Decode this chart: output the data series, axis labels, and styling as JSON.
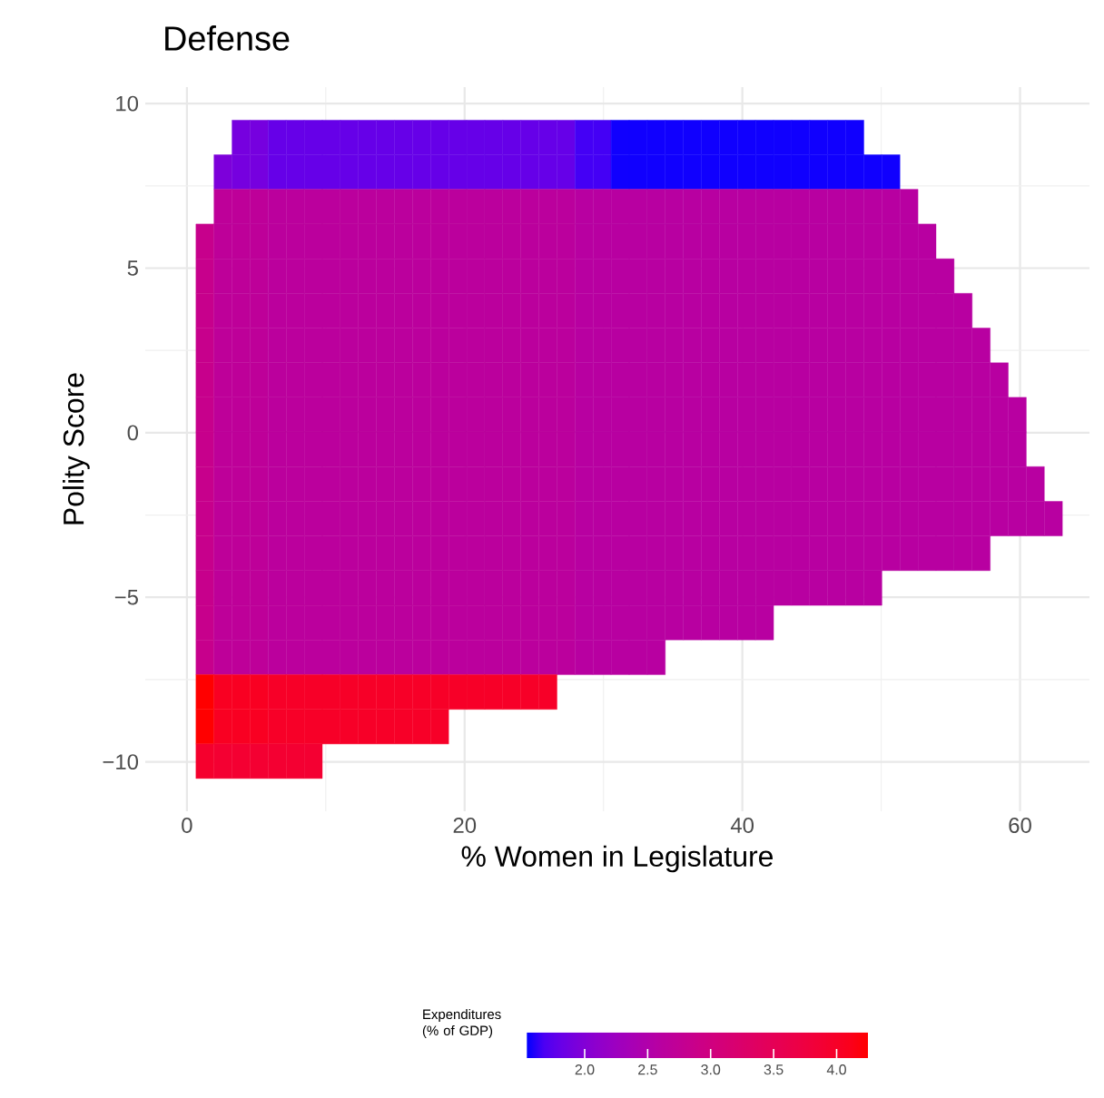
{
  "chart_data": {
    "type": "heatmap",
    "title": "Defense",
    "xlabel": "% Women in Legislature",
    "ylabel": "Polity Score",
    "clabel": "Expenditures (% of GDP)",
    "x": [
      1.3,
      2.6,
      3.9,
      5.2,
      6.5,
      7.8,
      9.1,
      10.4,
      11.7,
      13,
      14.3,
      15.6,
      16.9,
      18.2,
      19.5,
      20.8,
      22.1,
      23.4,
      24.7,
      26,
      27.3,
      28.6,
      29.9,
      31.2,
      32.5,
      33.8,
      35.1,
      36.4,
      37.7,
      39,
      40.3,
      41.6,
      42.9,
      44.2,
      45.5,
      46.8,
      48.1,
      49.4,
      50.7,
      52,
      53.3,
      54.6,
      55.9,
      57.2,
      58.5,
      59.8,
      61.1,
      62.4
    ],
    "y": [
      8.97,
      7.92,
      6.87,
      5.81,
      4.76,
      3.71,
      2.65,
      1.6,
      0.55,
      -0.5,
      -1.56,
      -2.61,
      -3.66,
      -4.72,
      -5.77,
      -6.82,
      -7.88,
      -8.93,
      -9.98
    ],
    "cells": [
      [
        null,
        null,
        1.9,
        1.9,
        1.8,
        1.8,
        1.8,
        1.8,
        1.8,
        1.8,
        1.8,
        1.8,
        1.8,
        1.8,
        1.8,
        1.8,
        1.8,
        1.8,
        1.8,
        1.8,
        1.8,
        1.65,
        1.65,
        1.55,
        1.55,
        1.55,
        1.55,
        1.55,
        1.55,
        1.55,
        1.55,
        1.55,
        1.55,
        1.55,
        1.55,
        1.55,
        1.55,
        null,
        null,
        null,
        null,
        null,
        null,
        null,
        null,
        null,
        null,
        null
      ],
      [
        null,
        1.95,
        1.9,
        1.9,
        1.8,
        1.8,
        1.8,
        1.8,
        1.8,
        1.8,
        1.8,
        1.8,
        1.8,
        1.8,
        1.8,
        1.8,
        1.8,
        1.8,
        1.8,
        1.8,
        1.8,
        1.65,
        1.65,
        1.55,
        1.55,
        1.55,
        1.55,
        1.55,
        1.55,
        1.55,
        1.55,
        1.55,
        1.55,
        1.55,
        1.55,
        1.55,
        1.55,
        1.55,
        1.55,
        null,
        null,
        null,
        null,
        null,
        null,
        null,
        null,
        null
      ],
      [
        null,
        2.7,
        2.7,
        2.7,
        2.65,
        2.65,
        2.65,
        2.65,
        2.65,
        2.65,
        2.65,
        2.65,
        2.65,
        2.65,
        2.65,
        2.65,
        2.65,
        2.65,
        2.65,
        2.65,
        2.65,
        2.6,
        2.6,
        2.6,
        2.6,
        2.6,
        2.6,
        2.6,
        2.6,
        2.6,
        2.6,
        2.6,
        2.6,
        2.6,
        2.6,
        2.6,
        2.6,
        2.6,
        2.6,
        2.6,
        null,
        null,
        null,
        null,
        null,
        null,
        null,
        null
      ],
      [
        2.85,
        2.7,
        2.7,
        2.7,
        2.65,
        2.65,
        2.65,
        2.65,
        2.65,
        2.65,
        2.65,
        2.65,
        2.65,
        2.65,
        2.65,
        2.65,
        2.65,
        2.65,
        2.65,
        2.65,
        2.65,
        2.6,
        2.6,
        2.6,
        2.6,
        2.6,
        2.6,
        2.6,
        2.6,
        2.6,
        2.6,
        2.6,
        2.6,
        2.6,
        2.6,
        2.6,
        2.6,
        2.6,
        2.6,
        2.6,
        2.6,
        null,
        null,
        null,
        null,
        null,
        null,
        null
      ],
      [
        2.85,
        2.7,
        2.7,
        2.7,
        2.65,
        2.65,
        2.65,
        2.65,
        2.65,
        2.65,
        2.65,
        2.65,
        2.65,
        2.65,
        2.65,
        2.65,
        2.65,
        2.65,
        2.65,
        2.65,
        2.65,
        2.6,
        2.6,
        2.6,
        2.6,
        2.6,
        2.6,
        2.6,
        2.6,
        2.6,
        2.6,
        2.6,
        2.6,
        2.6,
        2.6,
        2.6,
        2.6,
        2.6,
        2.6,
        2.6,
        2.6,
        2.6,
        null,
        null,
        null,
        null,
        null,
        null
      ],
      [
        2.85,
        2.7,
        2.7,
        2.7,
        2.65,
        2.65,
        2.65,
        2.65,
        2.65,
        2.65,
        2.65,
        2.65,
        2.65,
        2.65,
        2.65,
        2.65,
        2.65,
        2.65,
        2.65,
        2.65,
        2.65,
        2.6,
        2.6,
        2.6,
        2.6,
        2.6,
        2.6,
        2.6,
        2.6,
        2.6,
        2.6,
        2.6,
        2.6,
        2.6,
        2.6,
        2.6,
        2.6,
        2.6,
        2.6,
        2.6,
        2.6,
        2.6,
        2.6,
        null,
        null,
        null,
        null,
        null
      ],
      [
        2.85,
        2.7,
        2.7,
        2.7,
        2.65,
        2.65,
        2.65,
        2.65,
        2.65,
        2.65,
        2.65,
        2.65,
        2.65,
        2.65,
        2.65,
        2.65,
        2.65,
        2.65,
        2.65,
        2.65,
        2.65,
        2.6,
        2.6,
        2.6,
        2.6,
        2.6,
        2.6,
        2.6,
        2.6,
        2.6,
        2.6,
        2.6,
        2.6,
        2.6,
        2.6,
        2.6,
        2.6,
        2.6,
        2.6,
        2.6,
        2.6,
        2.6,
        2.6,
        2.6,
        null,
        null,
        null,
        null
      ],
      [
        2.85,
        2.7,
        2.7,
        2.7,
        2.65,
        2.65,
        2.65,
        2.65,
        2.65,
        2.65,
        2.65,
        2.65,
        2.65,
        2.65,
        2.65,
        2.65,
        2.65,
        2.65,
        2.65,
        2.65,
        2.65,
        2.6,
        2.6,
        2.6,
        2.6,
        2.6,
        2.6,
        2.6,
        2.6,
        2.6,
        2.6,
        2.6,
        2.6,
        2.6,
        2.6,
        2.6,
        2.6,
        2.6,
        2.6,
        2.6,
        2.6,
        2.6,
        2.6,
        2.6,
        2.6,
        null,
        null,
        null
      ],
      [
        2.85,
        2.7,
        2.7,
        2.7,
        2.65,
        2.65,
        2.65,
        2.65,
        2.65,
        2.65,
        2.65,
        2.65,
        2.65,
        2.65,
        2.65,
        2.65,
        2.65,
        2.65,
        2.65,
        2.65,
        2.65,
        2.6,
        2.6,
        2.6,
        2.6,
        2.6,
        2.6,
        2.6,
        2.6,
        2.6,
        2.6,
        2.6,
        2.6,
        2.6,
        2.6,
        2.6,
        2.6,
        2.6,
        2.6,
        2.6,
        2.6,
        2.6,
        2.6,
        2.6,
        2.6,
        2.6,
        null,
        null
      ],
      [
        2.85,
        2.7,
        2.7,
        2.7,
        2.65,
        2.65,
        2.65,
        2.65,
        2.65,
        2.65,
        2.65,
        2.65,
        2.65,
        2.65,
        2.65,
        2.65,
        2.65,
        2.65,
        2.65,
        2.65,
        2.65,
        2.6,
        2.6,
        2.6,
        2.6,
        2.6,
        2.6,
        2.6,
        2.6,
        2.6,
        2.6,
        2.6,
        2.6,
        2.6,
        2.6,
        2.6,
        2.6,
        2.6,
        2.6,
        2.6,
        2.6,
        2.6,
        2.6,
        2.6,
        2.6,
        2.6,
        null,
        null
      ],
      [
        2.85,
        2.7,
        2.7,
        2.7,
        2.65,
        2.65,
        2.65,
        2.65,
        2.65,
        2.65,
        2.65,
        2.65,
        2.65,
        2.65,
        2.65,
        2.65,
        2.65,
        2.65,
        2.65,
        2.65,
        2.65,
        2.6,
        2.6,
        2.6,
        2.6,
        2.6,
        2.6,
        2.6,
        2.6,
        2.6,
        2.6,
        2.6,
        2.6,
        2.6,
        2.6,
        2.6,
        2.6,
        2.6,
        2.6,
        2.6,
        2.6,
        2.6,
        2.6,
        2.6,
        2.6,
        2.6,
        2.6,
        null
      ],
      [
        2.85,
        2.7,
        2.7,
        2.7,
        2.65,
        2.65,
        2.65,
        2.65,
        2.65,
        2.65,
        2.65,
        2.65,
        2.65,
        2.65,
        2.65,
        2.65,
        2.65,
        2.65,
        2.65,
        2.65,
        2.65,
        2.6,
        2.6,
        2.6,
        2.6,
        2.6,
        2.6,
        2.6,
        2.6,
        2.6,
        2.6,
        2.6,
        2.6,
        2.6,
        2.6,
        2.6,
        2.6,
        2.6,
        2.6,
        2.6,
        2.6,
        2.6,
        2.6,
        2.6,
        2.6,
        2.6,
        2.6,
        2.6
      ],
      [
        2.85,
        2.7,
        2.7,
        2.7,
        2.65,
        2.65,
        2.65,
        2.65,
        2.65,
        2.65,
        2.65,
        2.65,
        2.65,
        2.65,
        2.65,
        2.65,
        2.65,
        2.65,
        2.65,
        2.65,
        2.65,
        2.6,
        2.6,
        2.6,
        2.6,
        2.6,
        2.6,
        2.6,
        2.6,
        2.6,
        2.6,
        2.6,
        2.6,
        2.6,
        2.6,
        2.6,
        2.6,
        2.6,
        2.6,
        2.6,
        2.6,
        2.6,
        2.6,
        2.6,
        null,
        null,
        null,
        null
      ],
      [
        2.85,
        2.7,
        2.7,
        2.7,
        2.65,
        2.65,
        2.65,
        2.65,
        2.65,
        2.65,
        2.65,
        2.65,
        2.65,
        2.65,
        2.65,
        2.65,
        2.65,
        2.65,
        2.65,
        2.65,
        2.65,
        2.6,
        2.6,
        2.6,
        2.6,
        2.6,
        2.6,
        2.6,
        2.6,
        2.6,
        2.6,
        2.6,
        2.6,
        2.6,
        2.6,
        2.6,
        2.6,
        2.6,
        null,
        null,
        null,
        null,
        null,
        null,
        null,
        null,
        null,
        null
      ],
      [
        2.85,
        2.7,
        2.7,
        2.7,
        2.65,
        2.65,
        2.65,
        2.65,
        2.65,
        2.65,
        2.65,
        2.65,
        2.65,
        2.65,
        2.65,
        2.65,
        2.65,
        2.65,
        2.65,
        2.65,
        2.65,
        2.6,
        2.6,
        2.6,
        2.6,
        2.6,
        2.6,
        2.6,
        2.6,
        2.6,
        2.6,
        2.6,
        null,
        null,
        null,
        null,
        null,
        null,
        null,
        null,
        null,
        null,
        null,
        null,
        null,
        null,
        null,
        null
      ],
      [
        2.85,
        2.7,
        2.7,
        2.7,
        2.65,
        2.65,
        2.65,
        2.65,
        2.65,
        2.65,
        2.65,
        2.65,
        2.65,
        2.65,
        2.65,
        2.65,
        2.65,
        2.65,
        2.65,
        2.65,
        2.65,
        2.6,
        2.6,
        2.6,
        2.6,
        2.6,
        null,
        null,
        null,
        null,
        null,
        null,
        null,
        null,
        null,
        null,
        null,
        null,
        null,
        null,
        null,
        null,
        null,
        null,
        null,
        null,
        null,
        null
      ],
      [
        4.25,
        4.05,
        4.05,
        4.05,
        4.0,
        4.0,
        4.0,
        4.0,
        4.0,
        4.0,
        4.0,
        4.0,
        4.0,
        4.0,
        4.0,
        4.0,
        4.0,
        4.0,
        4.0,
        4.0,
        null,
        null,
        null,
        null,
        null,
        null,
        null,
        null,
        null,
        null,
        null,
        null,
        null,
        null,
        null,
        null,
        null,
        null,
        null,
        null,
        null,
        null,
        null,
        null,
        null,
        null,
        null,
        null
      ],
      [
        4.25,
        4.05,
        4.05,
        4.05,
        4.0,
        4.0,
        4.0,
        4.0,
        4.0,
        4.0,
        4.0,
        4.0,
        4.0,
        4.0,
        null,
        null,
        null,
        null,
        null,
        null,
        null,
        null,
        null,
        null,
        null,
        null,
        null,
        null,
        null,
        null,
        null,
        null,
        null,
        null,
        null,
        null,
        null,
        null,
        null,
        null,
        null,
        null,
        null,
        null,
        null,
        null,
        null,
        null
      ],
      [
        3.95,
        3.9,
        3.9,
        3.9,
        3.9,
        3.9,
        3.9,
        null,
        null,
        null,
        null,
        null,
        null,
        null,
        null,
        null,
        null,
        null,
        null,
        null,
        null,
        null,
        null,
        null,
        null,
        null,
        null,
        null,
        null,
        null,
        null,
        null,
        null,
        null,
        null,
        null,
        null,
        null,
        null,
        null,
        null,
        null,
        null,
        null,
        null,
        null,
        null,
        null
      ]
    ],
    "colors": [
      "#0000ff",
      "#ff0000"
    ],
    "clim": [
      1.54,
      4.25
    ],
    "cticks": [
      {
        "value": 2,
        "label": "2.0"
      },
      {
        "value": 2.5,
        "label": "2.5"
      },
      {
        "value": 3,
        "label": "3.0"
      },
      {
        "value": 3.5,
        "label": "3.5"
      },
      {
        "value": 4,
        "label": "4.0"
      }
    ],
    "xlim": [
      -3,
      65
    ],
    "ylim": [
      -11.5,
      10.5
    ],
    "xticks": [
      0,
      20,
      40,
      60
    ],
    "yticks": [
      {
        "value": -10,
        "label": "−10"
      },
      {
        "value": -5,
        "label": "−5"
      },
      0,
      5,
      10
    ],
    "grid": true
  }
}
